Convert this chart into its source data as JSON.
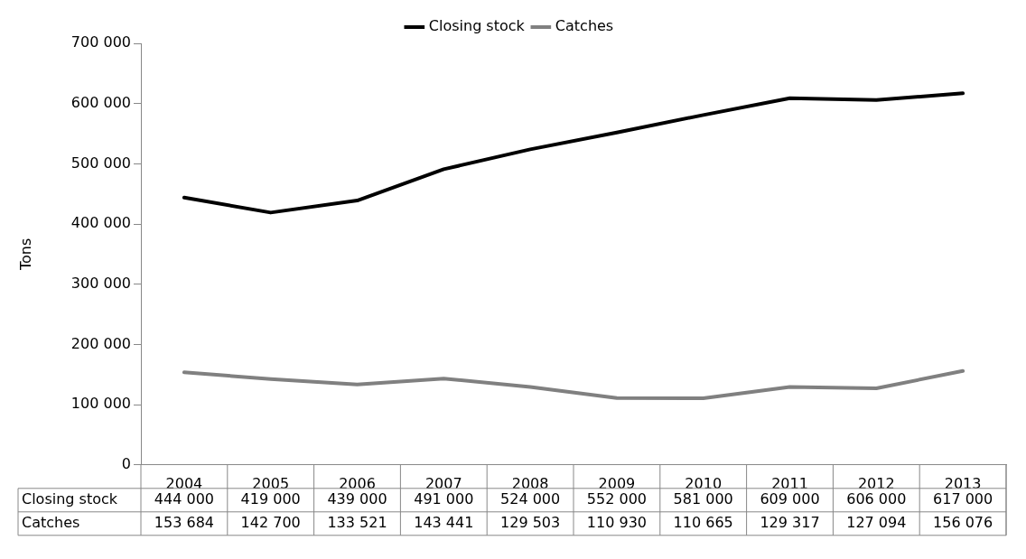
{
  "chart_data": {
    "type": "line",
    "ylabel": "Tons",
    "categories": [
      "2004",
      "2005",
      "2006",
      "2007",
      "2008",
      "2009",
      "2010",
      "2011",
      "2012",
      "2013"
    ],
    "series": [
      {
        "name": "Closing stock",
        "color": "#000000",
        "values": [
          444000,
          419000,
          439000,
          491000,
          524000,
          552000,
          581000,
          609000,
          606000,
          617000
        ],
        "value_labels": [
          "444 000",
          "419 000",
          "439 000",
          "491 000",
          "524 000",
          "552 000",
          "581 000",
          "609 000",
          "606 000",
          "617 000"
        ]
      },
      {
        "name": "Catches",
        "color": "#808080",
        "values": [
          153684,
          142700,
          133521,
          143441,
          129503,
          110930,
          110665,
          129317,
          127094,
          156076
        ],
        "value_labels": [
          "153 684",
          "142 700",
          "133 521",
          "143 441",
          "129 503",
          "110 930",
          "110 665",
          "129 317",
          "127 094",
          "156 076"
        ]
      }
    ],
    "ylim": [
      0,
      700000
    ],
    "yticks": [
      {
        "value": 0,
        "label": "0"
      },
      {
        "value": 100000,
        "label": "100 000"
      },
      {
        "value": 200000,
        "label": "200 000"
      },
      {
        "value": 300000,
        "label": "300 000"
      },
      {
        "value": 400000,
        "label": "400 000"
      },
      {
        "value": 500000,
        "label": "500 000"
      },
      {
        "value": 600000,
        "label": "600 000"
      },
      {
        "value": 700000,
        "label": "700 000"
      }
    ],
    "grid": false,
    "legend": "top",
    "marker": "none",
    "line_style": "solid"
  }
}
